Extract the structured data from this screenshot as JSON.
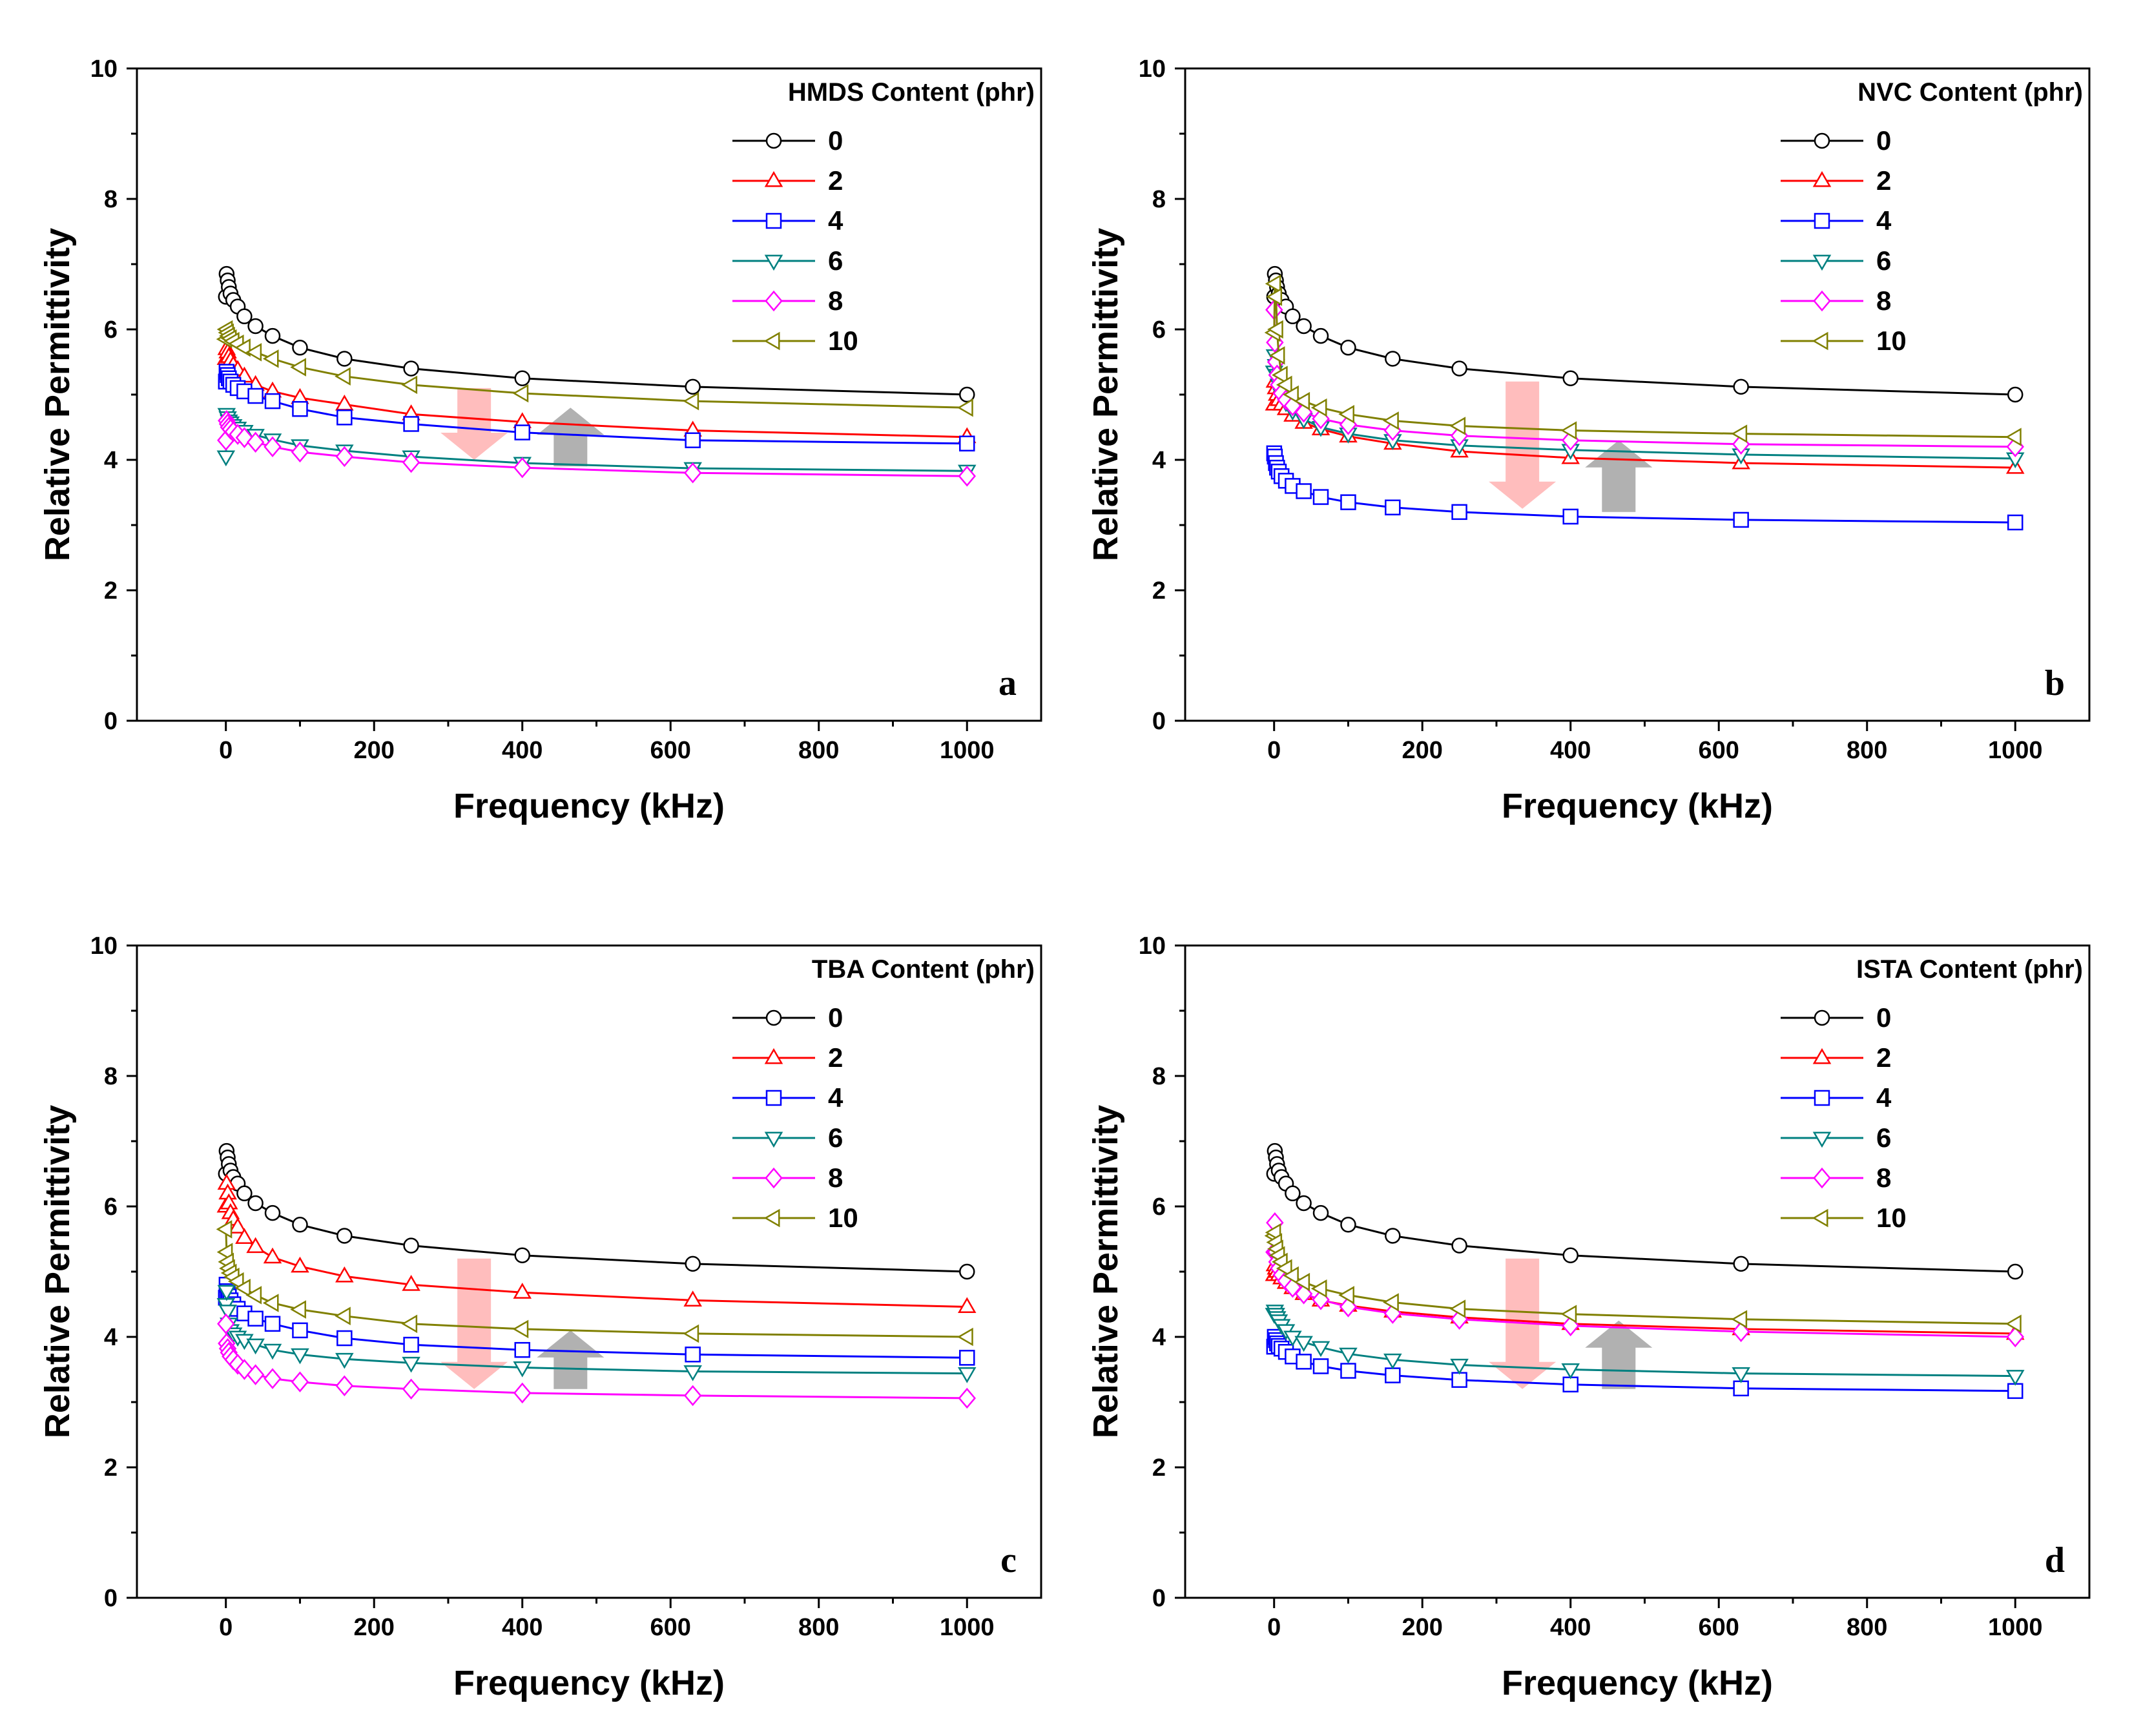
{
  "x_values": [
    0.1,
    1,
    2.5,
    4,
    6.3,
    10,
    16,
    25,
    40,
    63,
    100,
    160,
    250,
    400,
    630,
    1000
  ],
  "chart_data": [
    {
      "type": "line",
      "panel_label": "a",
      "legend_title": "HMDS Content (phr)",
      "xlabel": "Frequency (kHz)",
      "ylabel": "Relative Permittivity",
      "xlim": [
        -120,
        1100
      ],
      "ylim": [
        0,
        10
      ],
      "xticks": [
        0,
        200,
        400,
        600,
        800,
        1000
      ],
      "yticks": [
        0,
        2,
        4,
        6,
        8,
        10
      ],
      "x": [
        0.1,
        1,
        2.5,
        4,
        6.3,
        10,
        16,
        25,
        40,
        63,
        100,
        160,
        250,
        400,
        630,
        1000
      ],
      "arrows": [
        {
          "direction": "down",
          "x": 335,
          "y_start": 5.1,
          "y_end": 4.0
        },
        {
          "direction": "up",
          "x": 465,
          "y_start": 3.9,
          "y_end": 4.8
        }
      ],
      "series": [
        {
          "name": "0",
          "color": "#000000",
          "marker": "circle",
          "values": [
            6.5,
            6.85,
            6.75,
            6.65,
            6.55,
            6.45,
            6.35,
            6.2,
            6.05,
            5.9,
            5.72,
            5.55,
            5.4,
            5.25,
            5.12,
            5.0
          ]
        },
        {
          "name": "2",
          "color": "#ff0000",
          "marker": "triangle-up",
          "values": [
            5.55,
            5.7,
            5.65,
            5.58,
            5.52,
            5.45,
            5.38,
            5.28,
            5.15,
            5.05,
            4.95,
            4.85,
            4.7,
            4.58,
            4.45,
            4.35
          ]
        },
        {
          "name": "4",
          "color": "#0000ff",
          "marker": "square",
          "values": [
            5.2,
            5.35,
            5.3,
            5.25,
            5.2,
            5.15,
            5.1,
            5.05,
            4.98,
            4.9,
            4.78,
            4.65,
            4.55,
            4.42,
            4.3,
            4.25
          ]
        },
        {
          "name": "6",
          "color": "#008080",
          "marker": "triangle-down",
          "values": [
            4.05,
            4.7,
            4.65,
            4.6,
            4.57,
            4.53,
            4.49,
            4.44,
            4.38,
            4.31,
            4.22,
            4.14,
            4.05,
            3.95,
            3.87,
            3.83
          ]
        },
        {
          "name": "8",
          "color": "#ff00ff",
          "marker": "diamond",
          "values": [
            4.3,
            4.6,
            4.55,
            4.5,
            4.47,
            4.43,
            4.39,
            4.34,
            4.27,
            4.2,
            4.12,
            4.05,
            3.96,
            3.88,
            3.8,
            3.75
          ]
        },
        {
          "name": "10",
          "color": "#808000",
          "marker": "triangle-left",
          "values": [
            5.85,
            6.0,
            5.95,
            5.9,
            5.86,
            5.82,
            5.78,
            5.72,
            5.65,
            5.55,
            5.42,
            5.28,
            5.15,
            5.02,
            4.9,
            4.8
          ]
        }
      ]
    },
    {
      "type": "line",
      "panel_label": "b",
      "legend_title": "NVC Content (phr)",
      "xlabel": "Frequency (kHz)",
      "ylabel": "Relative Permittivity",
      "xlim": [
        -120,
        1100
      ],
      "ylim": [
        0,
        10
      ],
      "xticks": [
        0,
        200,
        400,
        600,
        800,
        1000
      ],
      "yticks": [
        0,
        2,
        4,
        6,
        8,
        10
      ],
      "x": [
        0.1,
        1,
        2.5,
        4,
        6.3,
        10,
        16,
        25,
        40,
        63,
        100,
        160,
        250,
        400,
        630,
        1000
      ],
      "arrows": [
        {
          "direction": "down",
          "x": 335,
          "y_start": 5.2,
          "y_end": 3.25
        },
        {
          "direction": "up",
          "x": 465,
          "y_start": 3.2,
          "y_end": 4.3
        }
      ],
      "series": [
        {
          "name": "0",
          "color": "#000000",
          "marker": "circle",
          "values": [
            6.5,
            6.85,
            6.75,
            6.65,
            6.55,
            6.45,
            6.35,
            6.2,
            6.05,
            5.9,
            5.72,
            5.55,
            5.4,
            5.25,
            5.12,
            5.0
          ]
        },
        {
          "name": "2",
          "color": "#ff0000",
          "marker": "triangle-up",
          "values": [
            4.85,
            5.2,
            5.1,
            5.0,
            4.92,
            4.85,
            4.78,
            4.68,
            4.57,
            4.47,
            4.36,
            4.25,
            4.13,
            4.03,
            3.95,
            3.88
          ]
        },
        {
          "name": "4",
          "color": "#0000ff",
          "marker": "square",
          "values": [
            4.1,
            4.05,
            3.95,
            3.88,
            3.82,
            3.75,
            3.68,
            3.6,
            3.52,
            3.43,
            3.35,
            3.27,
            3.2,
            3.13,
            3.08,
            3.04
          ]
        },
        {
          "name": "6",
          "color": "#008080",
          "marker": "triangle-down",
          "values": [
            5.35,
            5.6,
            5.45,
            5.3,
            5.15,
            5.0,
            4.88,
            4.75,
            4.62,
            4.5,
            4.4,
            4.3,
            4.22,
            4.15,
            4.08,
            4.02
          ]
        },
        {
          "name": "8",
          "color": "#ff00ff",
          "marker": "diamond",
          "values": [
            6.3,
            5.8,
            5.5,
            5.3,
            5.15,
            5.02,
            4.92,
            4.83,
            4.73,
            4.63,
            4.54,
            4.45,
            4.37,
            4.3,
            4.24,
            4.2
          ]
        },
        {
          "name": "10",
          "color": "#808000",
          "marker": "triangle-left",
          "values": [
            5.95,
            6.7,
            6.5,
            6.0,
            5.6,
            5.3,
            5.15,
            5.0,
            4.9,
            4.8,
            4.7,
            4.6,
            4.52,
            4.45,
            4.4,
            4.35
          ]
        }
      ]
    },
    {
      "type": "line",
      "panel_label": "c",
      "legend_title": "TBA Content (phr)",
      "xlabel": "Frequency (kHz)",
      "ylabel": "Relative Permittivity",
      "xlim": [
        -120,
        1100
      ],
      "ylim": [
        0,
        10
      ],
      "xticks": [
        0,
        200,
        400,
        600,
        800,
        1000
      ],
      "yticks": [
        0,
        2,
        4,
        6,
        8,
        10
      ],
      "x": [
        0.1,
        1,
        2.5,
        4,
        6.3,
        10,
        16,
        25,
        40,
        63,
        100,
        160,
        250,
        400,
        630,
        1000
      ],
      "arrows": [
        {
          "direction": "down",
          "x": 335,
          "y_start": 5.2,
          "y_end": 3.2
        },
        {
          "direction": "up",
          "x": 465,
          "y_start": 3.2,
          "y_end": 4.1
        }
      ],
      "series": [
        {
          "name": "0",
          "color": "#000000",
          "marker": "circle",
          "values": [
            6.5,
            6.85,
            6.75,
            6.65,
            6.55,
            6.45,
            6.35,
            6.2,
            6.05,
            5.9,
            5.72,
            5.55,
            5.4,
            5.25,
            5.12,
            5.0
          ]
        },
        {
          "name": "2",
          "color": "#ff0000",
          "marker": "triangle-up",
          "values": [
            6.0,
            6.35,
            6.2,
            6.05,
            5.9,
            5.8,
            5.68,
            5.52,
            5.38,
            5.22,
            5.08,
            4.93,
            4.8,
            4.68,
            4.56,
            4.46
          ]
        },
        {
          "name": "4",
          "color": "#0000ff",
          "marker": "square",
          "values": [
            4.6,
            4.8,
            4.7,
            4.62,
            4.56,
            4.5,
            4.43,
            4.36,
            4.28,
            4.2,
            4.1,
            3.98,
            3.88,
            3.8,
            3.73,
            3.68
          ]
        },
        {
          "name": "6",
          "color": "#008080",
          "marker": "triangle-down",
          "values": [
            4.5,
            4.7,
            4.4,
            4.2,
            4.1,
            4.05,
            4.0,
            3.95,
            3.88,
            3.8,
            3.73,
            3.66,
            3.6,
            3.53,
            3.47,
            3.44
          ]
        },
        {
          "name": "8",
          "color": "#ff00ff",
          "marker": "diamond",
          "values": [
            4.2,
            3.9,
            3.82,
            3.76,
            3.7,
            3.65,
            3.58,
            3.5,
            3.42,
            3.36,
            3.31,
            3.25,
            3.2,
            3.14,
            3.1,
            3.06
          ]
        },
        {
          "name": "10",
          "color": "#808000",
          "marker": "triangle-left",
          "values": [
            5.65,
            5.3,
            5.15,
            5.05,
            4.98,
            4.92,
            4.85,
            4.75,
            4.64,
            4.52,
            4.42,
            4.32,
            4.2,
            4.12,
            4.05,
            4.0
          ]
        }
      ]
    },
    {
      "type": "line",
      "panel_label": "d",
      "legend_title": "ISTA Content (phr)",
      "xlabel": "Frequency (kHz)",
      "ylabel": "Relative Permittivity",
      "xlim": [
        -120,
        1100
      ],
      "ylim": [
        0,
        10
      ],
      "xticks": [
        0,
        200,
        400,
        600,
        800,
        1000
      ],
      "yticks": [
        0,
        2,
        4,
        6,
        8,
        10
      ],
      "x": [
        0.1,
        1,
        2.5,
        4,
        6.3,
        10,
        16,
        25,
        40,
        63,
        100,
        160,
        250,
        400,
        630,
        1000
      ],
      "arrows": [
        {
          "direction": "down",
          "x": 335,
          "y_start": 5.2,
          "y_end": 3.2
        },
        {
          "direction": "up",
          "x": 465,
          "y_start": 3.2,
          "y_end": 4.25
        }
      ],
      "series": [
        {
          "name": "0",
          "color": "#000000",
          "marker": "circle",
          "values": [
            6.5,
            6.85,
            6.75,
            6.65,
            6.55,
            6.45,
            6.35,
            6.2,
            6.05,
            5.9,
            5.72,
            5.55,
            5.4,
            5.25,
            5.12,
            5.0
          ]
        },
        {
          "name": "2",
          "color": "#ff0000",
          "marker": "triangle-up",
          "values": [
            4.95,
            5.1,
            5.05,
            5.0,
            4.95,
            4.9,
            4.83,
            4.75,
            4.66,
            4.56,
            4.48,
            4.39,
            4.3,
            4.2,
            4.12,
            4.05
          ]
        },
        {
          "name": "4",
          "color": "#0000ff",
          "marker": "square",
          "values": [
            3.85,
            4.0,
            3.95,
            3.9,
            3.86,
            3.82,
            3.77,
            3.7,
            3.62,
            3.55,
            3.48,
            3.41,
            3.34,
            3.27,
            3.21,
            3.17
          ]
        },
        {
          "name": "6",
          "color": "#008080",
          "marker": "triangle-down",
          "values": [
            4.35,
            4.4,
            4.35,
            4.3,
            4.25,
            4.18,
            4.1,
            4.0,
            3.92,
            3.84,
            3.74,
            3.65,
            3.57,
            3.5,
            3.44,
            3.4
          ]
        },
        {
          "name": "8",
          "color": "#ff00ff",
          "marker": "diamond",
          "values": [
            5.3,
            5.75,
            5.3,
            5.15,
            5.05,
            4.95,
            4.86,
            4.76,
            4.66,
            4.57,
            4.46,
            4.36,
            4.27,
            4.17,
            4.08,
            4.0
          ]
        },
        {
          "name": "10",
          "color": "#808000",
          "marker": "triangle-left",
          "values": [
            5.55,
            5.6,
            5.45,
            5.35,
            5.25,
            5.15,
            5.05,
            4.94,
            4.84,
            4.74,
            4.64,
            4.53,
            4.43,
            4.35,
            4.27,
            4.2
          ]
        }
      ]
    }
  ]
}
